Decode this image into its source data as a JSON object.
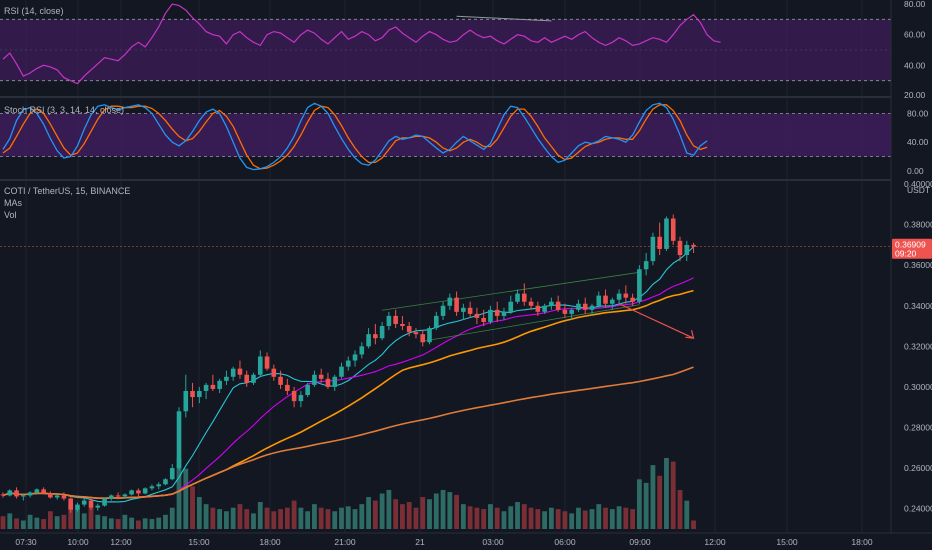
{
  "chart_data": {
    "type": "candlestick",
    "symbol_label": "COTI / TetherUS, 15, BINANCE",
    "overlay_labels": [
      "MAs",
      "Vol"
    ],
    "x_ticks": [
      "07:30",
      "10:00",
      "12:00",
      "15:00",
      "18:00",
      "21:00",
      "21",
      "03:00",
      "06:00",
      "09:00",
      "12:00",
      "15:00",
      "18:00"
    ],
    "price_axis": {
      "unit": "USDT",
      "ticks": [
        "0.40000",
        "0.38000",
        "0.36000",
        "0.34000",
        "0.32000",
        "0.30000",
        "0.28000",
        "0.26000",
        "0.24000"
      ],
      "range": [
        0.228,
        0.401
      ],
      "last_price": "0.36909",
      "countdown": "09:20"
    },
    "rsi": {
      "label": "RSI (14, close)",
      "ticks": [
        "80.00",
        "60.00",
        "40.00",
        "20.00"
      ],
      "range": [
        20,
        80
      ],
      "overbought": 70,
      "oversold": 30,
      "values": [
        44,
        48,
        41,
        33,
        35,
        38,
        40,
        39,
        37,
        32,
        30,
        28,
        33,
        37,
        41,
        45,
        44,
        43,
        47,
        52,
        55,
        52,
        58,
        65,
        74,
        80,
        79,
        76,
        71,
        67,
        62,
        60,
        59,
        54,
        60,
        62,
        58,
        55,
        53,
        60,
        62,
        61,
        58,
        55,
        60,
        63,
        61,
        57,
        54,
        58,
        62,
        57,
        59,
        62,
        60,
        56,
        58,
        63,
        65,
        61,
        58,
        55,
        59,
        62,
        60,
        57,
        55,
        56,
        60,
        63,
        60,
        58,
        59,
        56,
        54,
        57,
        60,
        59,
        56,
        55,
        58,
        55,
        57,
        59,
        57,
        60,
        62,
        58,
        55,
        53,
        55,
        58,
        56,
        53,
        54,
        56,
        58,
        57,
        55,
        60,
        66,
        70,
        73,
        68,
        60,
        56,
        55
      ],
      "divergence_line": [
        [
          67,
          72
        ],
        [
          81,
          69
        ]
      ]
    },
    "stoch_rsi": {
      "label": "Stoch RSI (3, 3, 14, 14, close)",
      "ticks": [
        "80.00",
        "40.00",
        "0.00"
      ],
      "range": [
        0,
        100
      ],
      "upper_band": 80,
      "lower_band": 20,
      "k_values": [
        30,
        45,
        70,
        85,
        88,
        80,
        65,
        45,
        28,
        18,
        20,
        35,
        58,
        78,
        90,
        92,
        88,
        85,
        88,
        90,
        92,
        88,
        80,
        65,
        50,
        40,
        35,
        42,
        55,
        70,
        82,
        86,
        80,
        62,
        40,
        18,
        5,
        2,
        3,
        6,
        12,
        20,
        32,
        48,
        70,
        88,
        94,
        90,
        80,
        62,
        45,
        30,
        18,
        10,
        8,
        15,
        28,
        42,
        48,
        44,
        46,
        50,
        48,
        40,
        32,
        25,
        30,
        40,
        48,
        42,
        36,
        30,
        38,
        58,
        78,
        90,
        88,
        75,
        60,
        45,
        32,
        20,
        12,
        15,
        25,
        35,
        40,
        38,
        42,
        48,
        46,
        44,
        40,
        50,
        68,
        84,
        92,
        94,
        88,
        72,
        50,
        25,
        22,
        35,
        42
      ],
      "d_values": [
        25,
        32,
        48,
        65,
        80,
        86,
        80,
        65,
        48,
        32,
        22,
        25,
        38,
        55,
        72,
        85,
        90,
        90,
        88,
        88,
        90,
        90,
        87,
        80,
        70,
        58,
        48,
        42,
        45,
        55,
        68,
        80,
        84,
        76,
        62,
        42,
        22,
        8,
        3,
        4,
        8,
        14,
        22,
        34,
        50,
        68,
        84,
        90,
        88,
        78,
        63,
        46,
        32,
        20,
        12,
        12,
        18,
        30,
        42,
        46,
        46,
        48,
        48,
        46,
        40,
        32,
        28,
        32,
        40,
        44,
        40,
        34,
        34,
        44,
        60,
        76,
        86,
        86,
        76,
        62,
        46,
        34,
        22,
        16,
        18,
        26,
        34,
        38,
        40,
        44,
        46,
        46,
        44,
        44,
        56,
        72,
        86,
        92,
        92,
        84,
        70,
        50,
        35,
        30,
        33
      ],
      "colors": {
        "k": "#2196f3",
        "d": "#ff6d00"
      }
    },
    "candles": [
      [
        0.247,
        0.248,
        0.2455,
        0.2465
      ],
      [
        0.2465,
        0.2495,
        0.246,
        0.249
      ],
      [
        0.249,
        0.2505,
        0.245,
        0.246
      ],
      [
        0.246,
        0.2475,
        0.244,
        0.2465
      ],
      [
        0.2465,
        0.2485,
        0.2455,
        0.248
      ],
      [
        0.248,
        0.25,
        0.247,
        0.2495
      ],
      [
        0.2495,
        0.2505,
        0.247,
        0.2475
      ],
      [
        0.2475,
        0.2485,
        0.245,
        0.2455
      ],
      [
        0.2455,
        0.247,
        0.2445,
        0.2465
      ],
      [
        0.2465,
        0.248,
        0.244,
        0.245
      ],
      [
        0.245,
        0.2455,
        0.238,
        0.2395
      ],
      [
        0.2395,
        0.243,
        0.2385,
        0.242
      ],
      [
        0.242,
        0.245,
        0.241,
        0.244
      ],
      [
        0.244,
        0.2455,
        0.2395,
        0.2405
      ],
      [
        0.2405,
        0.2425,
        0.239,
        0.2415
      ],
      [
        0.2415,
        0.2455,
        0.241,
        0.245
      ],
      [
        0.245,
        0.247,
        0.244,
        0.2465
      ],
      [
        0.2465,
        0.248,
        0.2445,
        0.246
      ],
      [
        0.246,
        0.2475,
        0.245,
        0.247
      ],
      [
        0.247,
        0.2495,
        0.2465,
        0.249
      ],
      [
        0.249,
        0.25,
        0.246,
        0.2475
      ],
      [
        0.2475,
        0.2505,
        0.247,
        0.25
      ],
      [
        0.25,
        0.252,
        0.249,
        0.251
      ],
      [
        0.251,
        0.253,
        0.2495,
        0.252
      ],
      [
        0.252,
        0.255,
        0.2515,
        0.2545
      ],
      [
        0.2545,
        0.262,
        0.254,
        0.26
      ],
      [
        0.26,
        0.29,
        0.259,
        0.288
      ],
      [
        0.288,
        0.306,
        0.285,
        0.298
      ],
      [
        0.298,
        0.302,
        0.29,
        0.295
      ],
      [
        0.295,
        0.3,
        0.292,
        0.298
      ],
      [
        0.298,
        0.302,
        0.294,
        0.301
      ],
      [
        0.301,
        0.306,
        0.298,
        0.299
      ],
      [
        0.299,
        0.304,
        0.297,
        0.303
      ],
      [
        0.303,
        0.308,
        0.301,
        0.305
      ],
      [
        0.305,
        0.31,
        0.303,
        0.309
      ],
      [
        0.309,
        0.313,
        0.304,
        0.306
      ],
      [
        0.306,
        0.308,
        0.3,
        0.302
      ],
      [
        0.302,
        0.307,
        0.301,
        0.306
      ],
      [
        0.306,
        0.318,
        0.305,
        0.315
      ],
      [
        0.315,
        0.317,
        0.308,
        0.309
      ],
      [
        0.309,
        0.311,
        0.303,
        0.305
      ],
      [
        0.305,
        0.308,
        0.299,
        0.301
      ],
      [
        0.301,
        0.304,
        0.296,
        0.298
      ],
      [
        0.298,
        0.3,
        0.29,
        0.293
      ],
      [
        0.293,
        0.298,
        0.29,
        0.296
      ],
      [
        0.296,
        0.302,
        0.295,
        0.301
      ],
      [
        0.301,
        0.308,
        0.3,
        0.306
      ],
      [
        0.306,
        0.309,
        0.302,
        0.304
      ],
      [
        0.304,
        0.307,
        0.299,
        0.3
      ],
      [
        0.3,
        0.306,
        0.298,
        0.305
      ],
      [
        0.305,
        0.312,
        0.304,
        0.31
      ],
      [
        0.31,
        0.315,
        0.308,
        0.313
      ],
      [
        0.313,
        0.318,
        0.31,
        0.316
      ],
      [
        0.316,
        0.322,
        0.314,
        0.32
      ],
      [
        0.32,
        0.329,
        0.319,
        0.326
      ],
      [
        0.326,
        0.331,
        0.321,
        0.324
      ],
      [
        0.324,
        0.332,
        0.323,
        0.33
      ],
      [
        0.33,
        0.337,
        0.328,
        0.335
      ],
      [
        0.335,
        0.338,
        0.329,
        0.331
      ],
      [
        0.331,
        0.335,
        0.328,
        0.33
      ],
      [
        0.33,
        0.332,
        0.325,
        0.327
      ],
      [
        0.327,
        0.329,
        0.324,
        0.326
      ],
      [
        0.326,
        0.328,
        0.32,
        0.322
      ],
      [
        0.322,
        0.33,
        0.321,
        0.329
      ],
      [
        0.329,
        0.337,
        0.328,
        0.335
      ],
      [
        0.335,
        0.342,
        0.333,
        0.34
      ],
      [
        0.34,
        0.346,
        0.338,
        0.344
      ],
      [
        0.344,
        0.347,
        0.335,
        0.337
      ],
      [
        0.337,
        0.341,
        0.333,
        0.339
      ],
      [
        0.339,
        0.342,
        0.334,
        0.336
      ],
      [
        0.336,
        0.339,
        0.331,
        0.334
      ],
      [
        0.334,
        0.338,
        0.33,
        0.332
      ],
      [
        0.332,
        0.34,
        0.331,
        0.338
      ],
      [
        0.338,
        0.342,
        0.332,
        0.335
      ],
      [
        0.335,
        0.339,
        0.333,
        0.337
      ],
      [
        0.337,
        0.345,
        0.336,
        0.342
      ],
      [
        0.342,
        0.348,
        0.341,
        0.346
      ],
      [
        0.346,
        0.351,
        0.34,
        0.342
      ],
      [
        0.342,
        0.344,
        0.338,
        0.34
      ],
      [
        0.34,
        0.342,
        0.335,
        0.337
      ],
      [
        0.337,
        0.341,
        0.336,
        0.34
      ],
      [
        0.34,
        0.344,
        0.338,
        0.342
      ],
      [
        0.342,
        0.345,
        0.337,
        0.338
      ],
      [
        0.338,
        0.341,
        0.334,
        0.336
      ],
      [
        0.336,
        0.339,
        0.333,
        0.338
      ],
      [
        0.338,
        0.343,
        0.337,
        0.341
      ],
      [
        0.341,
        0.344,
        0.336,
        0.338
      ],
      [
        0.338,
        0.341,
        0.335,
        0.34
      ],
      [
        0.34,
        0.347,
        0.339,
        0.345
      ],
      [
        0.345,
        0.348,
        0.339,
        0.341
      ],
      [
        0.341,
        0.344,
        0.338,
        0.343
      ],
      [
        0.343,
        0.348,
        0.341,
        0.346
      ],
      [
        0.346,
        0.35,
        0.341,
        0.344
      ],
      [
        0.344,
        0.346,
        0.34,
        0.342
      ],
      [
        0.342,
        0.36,
        0.341,
        0.358
      ],
      [
        0.358,
        0.366,
        0.355,
        0.362
      ],
      [
        0.362,
        0.376,
        0.36,
        0.374
      ],
      [
        0.374,
        0.381,
        0.365,
        0.368
      ],
      [
        0.368,
        0.384,
        0.367,
        0.383
      ],
      [
        0.383,
        0.385,
        0.37,
        0.372
      ],
      [
        0.372,
        0.374,
        0.362,
        0.365
      ],
      [
        0.365,
        0.372,
        0.362,
        0.37
      ],
      [
        0.37,
        0.371,
        0.366,
        0.3691
      ]
    ],
    "volumes": [
      0.18,
      0.22,
      0.15,
      0.12,
      0.2,
      0.16,
      0.14,
      0.25,
      0.18,
      0.2,
      0.35,
      0.28,
      0.22,
      0.3,
      0.2,
      0.18,
      0.15,
      0.14,
      0.2,
      0.16,
      0.12,
      0.15,
      0.14,
      0.16,
      0.2,
      0.3,
      1.0,
      0.85,
      0.6,
      0.45,
      0.35,
      0.3,
      0.28,
      0.25,
      0.3,
      0.35,
      0.28,
      0.22,
      0.38,
      0.3,
      0.25,
      0.28,
      0.3,
      0.4,
      0.3,
      0.25,
      0.35,
      0.3,
      0.28,
      0.25,
      0.3,
      0.32,
      0.28,
      0.35,
      0.45,
      0.4,
      0.5,
      0.55,
      0.42,
      0.35,
      0.38,
      0.3,
      0.45,
      0.42,
      0.5,
      0.55,
      0.52,
      0.48,
      0.35,
      0.32,
      0.3,
      0.28,
      0.35,
      0.3,
      0.25,
      0.32,
      0.38,
      0.35,
      0.3,
      0.28,
      0.25,
      0.3,
      0.28,
      0.25,
      0.22,
      0.3,
      0.26,
      0.28,
      0.35,
      0.3,
      0.28,
      0.32,
      0.3,
      0.28,
      0.7,
      0.65,
      0.9,
      0.75,
      1.0,
      0.95,
      0.55,
      0.4,
      0.12
    ],
    "ma_lines": [
      {
        "period": 9,
        "color": "#26c6da"
      },
      {
        "period": 20,
        "color": "#d500f9"
      },
      {
        "period": 34,
        "color": "#ff9800"
      },
      {
        "period": 100,
        "color": "#e07b39"
      }
    ],
    "channel": {
      "upper": [
        [
          56,
          0.3378
        ],
        [
          94,
          0.3565
        ]
      ],
      "lower": [
        [
          62,
          0.3225
        ],
        [
          94,
          0.3405
        ]
      ]
    },
    "arrow": {
      "from": [
        91,
        0.341
      ],
      "to": [
        102,
        0.324
      ]
    },
    "colors": {
      "up": "#26a69a",
      "down": "#ef5350",
      "volume_up": "#2e6b64",
      "volume_down": "#7a2f36",
      "rsi_line": "#c633c6",
      "band_fill": "#3d1d5a",
      "background": "#131722",
      "grid": "#1f2332",
      "price_tag": "#ef5350"
    }
  }
}
